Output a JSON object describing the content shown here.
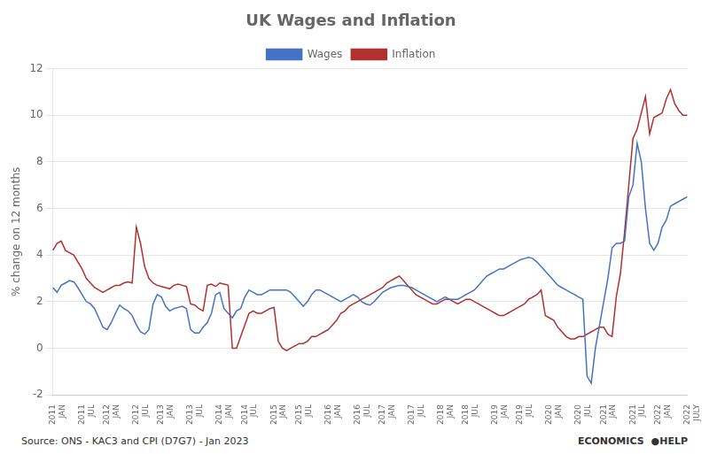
{
  "chart_data": {
    "type": "line",
    "title": "UK Wages and Inflation",
    "y_label": "% change on 12 months",
    "source": "Source: ONS - KAC3 and CPI (D7G7) - Jan 2023",
    "annotations": [
      "ECONOMICS",
      "●HELP"
    ],
    "categories": [
      "2011\nJAN",
      null,
      null,
      null,
      null,
      null,
      null,
      "2011\nJUL",
      null,
      null,
      null,
      null,
      null,
      "2012\nJAN",
      null,
      null,
      null,
      null,
      null,
      null,
      "2012\nJUL",
      null,
      null,
      null,
      null,
      null,
      "2013\nJAN",
      null,
      null,
      null,
      null,
      null,
      null,
      "2013\nJUL",
      null,
      null,
      null,
      null,
      null,
      null,
      "2014\nJAN",
      null,
      null,
      null,
      null,
      null,
      "2014\nJUL",
      null,
      null,
      null,
      null,
      null,
      null,
      "2015\nJAN",
      null,
      null,
      null,
      null,
      null,
      "2015\nJUL",
      null,
      null,
      null,
      null,
      null,
      null,
      "2016\nJAN",
      null,
      null,
      null,
      null,
      null,
      null,
      "2016\nJUL",
      null,
      null,
      null,
      null,
      null,
      "2017\nJAN",
      null,
      null,
      null,
      null,
      null,
      null,
      "2017\nJUL",
      null,
      null,
      null,
      null,
      null,
      null,
      "2018\nJAN",
      null,
      null,
      null,
      null,
      null,
      "2018\nJUL",
      null,
      null,
      null,
      null,
      null,
      null,
      "2019\nJAN",
      null,
      null,
      null,
      null,
      null,
      "2019\nJUL",
      null,
      null,
      null,
      null,
      null,
      null,
      "2020\nJAN",
      null,
      null,
      null,
      null,
      null,
      null,
      "2020\nJUL",
      null,
      null,
      null,
      null,
      null,
      "2021\nJAN",
      null,
      null,
      null,
      null,
      null,
      null,
      "2021\nJUL",
      null,
      null,
      null,
      null,
      null,
      "2022\nJAN",
      null,
      null,
      null,
      null,
      null,
      null,
      "2022\nJULY"
    ],
    "series": [
      {
        "name": "Wages",
        "color": "#4472C4",
        "values": [
          2.6,
          2.4,
          2.7,
          2.8,
          2.9,
          2.85,
          2.6,
          2.3,
          2.0,
          1.9,
          1.7,
          1.3,
          0.9,
          0.8,
          1.1,
          1.5,
          1.85,
          1.7,
          1.6,
          1.4,
          1.0,
          0.7,
          0.6,
          0.8,
          1.9,
          2.3,
          2.2,
          1.8,
          1.6,
          1.7,
          1.75,
          1.8,
          1.7,
          0.8,
          0.65,
          0.65,
          0.9,
          1.1,
          1.5,
          2.3,
          2.4,
          1.7,
          1.5,
          1.3,
          1.6,
          1.7,
          2.2,
          2.5,
          2.4,
          2.3,
          2.3,
          2.4,
          2.5,
          2.5,
          2.5,
          2.5,
          2.5,
          2.4,
          2.2,
          2.0,
          1.8,
          2.0,
          2.3,
          2.5,
          2.5,
          2.4,
          2.3,
          2.2,
          2.1,
          2.0,
          2.1,
          2.2,
          2.3,
          2.2,
          2.0,
          1.9,
          1.85,
          2.0,
          2.2,
          2.4,
          2.5,
          2.6,
          2.65,
          2.7,
          2.7,
          2.65,
          2.6,
          2.5,
          2.4,
          2.3,
          2.2,
          2.1,
          2.0,
          2.1,
          2.2,
          2.1,
          2.1,
          2.1,
          2.2,
          2.3,
          2.4,
          2.5,
          2.7,
          2.9,
          3.1,
          3.2,
          3.3,
          3.4,
          3.4,
          3.5,
          3.6,
          3.7,
          3.8,
          3.85,
          3.9,
          3.85,
          3.7,
          3.5,
          3.3,
          3.1,
          2.9,
          2.7,
          2.6,
          2.5,
          2.4,
          2.3,
          2.2,
          2.1,
          -1.2,
          -1.5,
          0.0,
          1.0,
          2.0,
          3.0,
          4.3,
          4.5,
          4.5,
          4.6,
          6.5,
          7.0,
          8.8,
          8.0,
          6.0,
          4.5,
          4.2,
          4.5,
          5.2,
          5.5,
          6.1,
          6.2,
          6.3,
          6.4,
          6.5
        ]
      },
      {
        "name": "Inflation",
        "color": "#B33030",
        "values": [
          4.2,
          4.5,
          4.6,
          4.2,
          4.1,
          4.0,
          3.7,
          3.4,
          3.0,
          2.8,
          2.6,
          2.5,
          2.4,
          2.5,
          2.6,
          2.7,
          2.7,
          2.8,
          2.85,
          2.8,
          5.2,
          4.5,
          3.5,
          3.0,
          2.8,
          2.7,
          2.65,
          2.6,
          2.55,
          2.7,
          2.75,
          2.7,
          2.65,
          1.9,
          1.85,
          1.7,
          1.6,
          2.7,
          2.75,
          2.65,
          2.8,
          2.75,
          2.7,
          0.0,
          0.0,
          0.5,
          1.0,
          1.5,
          1.6,
          1.5,
          1.5,
          1.6,
          1.7,
          1.75,
          0.3,
          0.0,
          -0.1,
          0.0,
          0.1,
          0.2,
          0.2,
          0.3,
          0.5,
          0.5,
          0.6,
          0.7,
          0.8,
          1.0,
          1.2,
          1.5,
          1.6,
          1.8,
          1.9,
          2.0,
          2.1,
          2.2,
          2.3,
          2.4,
          2.5,
          2.6,
          2.8,
          2.9,
          3.0,
          3.1,
          2.9,
          2.7,
          2.5,
          2.3,
          2.2,
          2.1,
          2.0,
          1.9,
          1.9,
          2.0,
          2.1,
          2.1,
          2.0,
          1.9,
          2.0,
          2.1,
          2.1,
          2.0,
          1.9,
          1.8,
          1.7,
          1.6,
          1.5,
          1.4,
          1.4,
          1.5,
          1.6,
          1.7,
          1.8,
          1.9,
          2.1,
          2.2,
          2.3,
          2.5,
          1.4,
          1.3,
          1.2,
          0.9,
          0.7,
          0.5,
          0.4,
          0.4,
          0.5,
          0.5,
          0.6,
          0.7,
          0.8,
          0.9,
          0.9,
          0.6,
          0.5,
          2.2,
          3.2,
          5.0,
          7.0,
          9.0,
          9.4,
          10.1,
          10.8,
          9.2,
          9.9,
          10.0,
          10.1,
          10.7,
          11.1,
          10.5,
          10.2,
          10.0,
          10.0
        ]
      }
    ],
    "ylim": [
      -2,
      12
    ],
    "yticks": [
      -2,
      0,
      2,
      4,
      6,
      8,
      10,
      12
    ],
    "grid": "y",
    "legend": "top"
  }
}
